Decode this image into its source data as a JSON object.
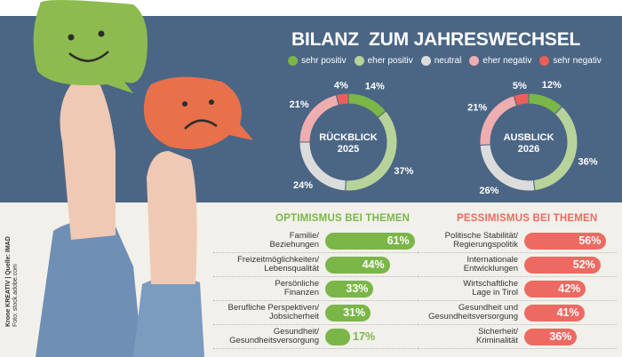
{
  "title": "BILANZ  ZUM JAHRESWECHSEL",
  "colors": {
    "sehr_positiv": "#7ab648",
    "eher_positiv": "#b7d39a",
    "neutral": "#dcdcdc",
    "eher_negativ": "#eeaeb0",
    "sehr_negativ": "#ec5f59",
    "optimism": "#7ab648",
    "pessimism": "#ec6a62",
    "blue": "#4b6684"
  },
  "legend": [
    "sehr positiv",
    "eher positiv",
    "neutral",
    "eher negativ",
    "sehr negativ"
  ],
  "credit": {
    "line1": "Krone KREATIV | Quelle: IMAD",
    "line2": "Foto: stock.adobe.com"
  },
  "chart_data": [
    {
      "type": "pie",
      "title": "RÜCKBLICK 2025",
      "title_l1": "RÜCKBLICK",
      "title_l2": "2025",
      "categories": [
        "sehr positiv",
        "eher positiv",
        "neutral",
        "eher negativ",
        "sehr negativ"
      ],
      "values": [
        14,
        37,
        24,
        21,
        4
      ],
      "labels": [
        "14%",
        "37%",
        "24%",
        "21%",
        "4%"
      ]
    },
    {
      "type": "pie",
      "title": "AUSBLICK 2026",
      "title_l1": "AUSBLICK",
      "title_l2": "2026",
      "categories": [
        "sehr positiv",
        "eher positiv",
        "neutral",
        "eher negativ",
        "sehr negativ"
      ],
      "values": [
        12,
        36,
        26,
        21,
        5
      ],
      "labels": [
        "12%",
        "36%",
        "26%",
        "21%",
        "5%"
      ]
    },
    {
      "type": "bar",
      "title": "OPTIMISMUS BEI THEMEN",
      "categories": [
        [
          "Familie/",
          "Beziehungen"
        ],
        [
          "Freizeitmöglichkeiten/",
          "Lebensqualität"
        ],
        [
          "Persönliche",
          "Finanzen"
        ],
        [
          "Berufliche Perspektiven/",
          "Jobsicherheit"
        ],
        [
          "Gesundheit/",
          "Gesundheitsversorgung"
        ]
      ],
      "values": [
        61,
        44,
        33,
        31,
        17
      ],
      "labels": [
        "61%",
        "44%",
        "33%",
        "31%",
        "17%"
      ]
    },
    {
      "type": "bar",
      "title": "PESSIMISMUS BEI THEMEN",
      "categories": [
        [
          "Politische Stabilität/",
          "Regierungspolitik"
        ],
        [
          "Internationale",
          "Entwicklungen"
        ],
        [
          "Wirtschaftliche",
          "Lage in Tirol"
        ],
        [
          "Gesundheit und",
          "Gesundheitsversorgung"
        ],
        [
          "Sicherheit/",
          "Kriminalität"
        ]
      ],
      "values": [
        56,
        52,
        42,
        41,
        36
      ],
      "labels": [
        "56%",
        "52%",
        "42%",
        "41%",
        "36%"
      ]
    }
  ]
}
